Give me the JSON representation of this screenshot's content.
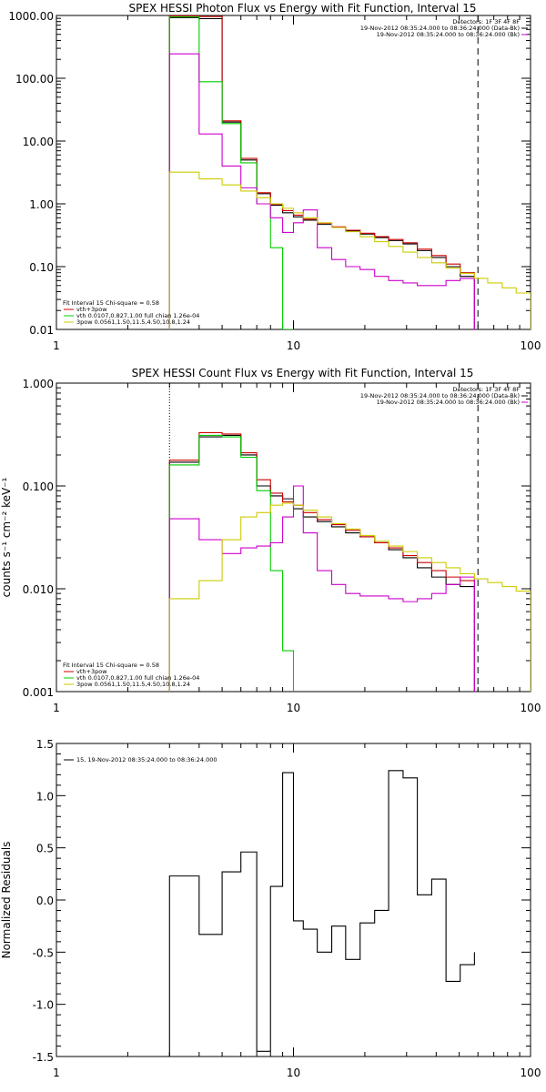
{
  "chart_data": [
    {
      "type": "line",
      "title": "SPEX HESSI Photon Flux vs Energy with Fit Function, Interval 15",
      "ylabel": "",
      "xscale": "log",
      "yscale": "log",
      "xlim": [
        1,
        100
      ],
      "ylim": [
        0.01,
        1000
      ],
      "xticks": [
        "1",
        "10",
        "100"
      ],
      "yticks": [
        "0.01",
        "0.10",
        "1.00",
        "10.00",
        "100.00",
        "1000.00"
      ],
      "ytick_values": [
        0.01,
        0.1,
        1,
        10,
        100,
        1000
      ],
      "header_lines": [
        "Detectors: 1F 3F 4F 8F",
        "19-Nov-2012 08:35:24.000 to 08:36:24.000 (Data-Bk)",
        "19-Nov-2012 08:35:24.000 to 08:36:24.000 (Bk)"
      ],
      "header_colors": [
        "#000000",
        "#000000",
        "#cc00cc"
      ],
      "legend_lines": [
        "Fit Interval 15   Chi-square = 0.58",
        "vth+3pow",
        "vth 0.0107,0.827,1.00  full chian 1.26e-04",
        "3pow 0.0561,1.50,11.5,4.50,10.8,1.24"
      ],
      "legend_colors": [
        "#000000",
        "#cc0000",
        "#00cc00",
        "#cccc00"
      ],
      "vlines": [
        {
          "x": 3,
          "style": "dotted"
        },
        {
          "x": 60,
          "style": "dashed"
        }
      ],
      "series": [
        {
          "color": "#000000",
          "edges": [
            3,
            4,
            5,
            6,
            7,
            8,
            9,
            10,
            11,
            12.6,
            14.5,
            16.6,
            19.1,
            22,
            25.2,
            29,
            33.3,
            38.3,
            44,
            50.5,
            58
          ],
          "values": [
            920,
            890,
            20,
            5,
            1.45,
            0.95,
            0.72,
            0.62,
            0.55,
            0.47,
            0.42,
            0.37,
            0.33,
            0.29,
            0.26,
            0.23,
            0.18,
            0.14,
            0.1,
            0.07
          ]
        },
        {
          "color": "#cc0000",
          "edges": [
            3,
            4,
            5,
            6,
            7,
            8,
            9,
            10,
            11,
            12.6,
            14.5,
            16.6,
            19.1,
            22,
            25.2,
            29,
            33.3,
            38.3,
            44,
            50.5,
            58
          ],
          "values": [
            980,
            960,
            21,
            5.3,
            1.5,
            0.98,
            0.78,
            0.66,
            0.57,
            0.49,
            0.43,
            0.38,
            0.34,
            0.3,
            0.27,
            0.24,
            0.19,
            0.15,
            0.11,
            0.08
          ]
        },
        {
          "color": "#00cc00",
          "edges": [
            3,
            4,
            5,
            6,
            7,
            8,
            9,
            10
          ],
          "values": [
            950,
            88,
            19,
            4.5,
            1.0,
            0.2,
            0.008
          ]
        },
        {
          "color": "#cc00cc",
          "edges": [
            3,
            4,
            5,
            6,
            7,
            8,
            9,
            10,
            11,
            12.6,
            14.5,
            16.6,
            19.1,
            22,
            25.2,
            29,
            33.3,
            38.3,
            44,
            50.5,
            58
          ],
          "values": [
            245,
            13,
            4,
            1.8,
            1.0,
            0.6,
            0.35,
            0.5,
            0.8,
            0.2,
            0.13,
            0.1,
            0.09,
            0.07,
            0.06,
            0.055,
            0.05,
            0.05,
            0.06,
            0.065
          ]
        },
        {
          "color": "#cccc00",
          "edges": [
            3,
            4,
            5,
            6,
            7,
            8,
            9,
            10,
            11,
            12.6,
            14.5,
            16.6,
            19.1,
            22,
            25.2,
            29,
            33.3,
            38.3,
            44,
            50.5,
            58,
            66,
            76,
            87,
            100
          ],
          "values": [
            3.2,
            2.5,
            2.0,
            1.6,
            1.25,
            1.0,
            0.85,
            0.72,
            0.6,
            0.5,
            0.42,
            0.36,
            0.3,
            0.25,
            0.21,
            0.17,
            0.14,
            0.115,
            0.095,
            0.078,
            0.065,
            0.055,
            0.046,
            0.038
          ]
        }
      ]
    },
    {
      "type": "line",
      "title": "SPEX HESSI Count Flux vs Energy with Fit Function, Interval 15",
      "ylabel": "counts s⁻¹ cm⁻² keV⁻¹",
      "xscale": "log",
      "yscale": "log",
      "xlim": [
        1,
        100
      ],
      "ylim": [
        0.001,
        1
      ],
      "xticks": [
        "1",
        "10",
        "100"
      ],
      "yticks": [
        "0.001",
        "0.010",
        "0.100",
        "1.000"
      ],
      "ytick_values": [
        0.001,
        0.01,
        0.1,
        1
      ],
      "header_lines": [
        "Detectors: 1F 3F 4F 8F",
        "19-Nov-2012 08:35:24.000 to 08:36:24.000 (Data-Bk)",
        "19-Nov-2012 08:35:24.000 to 08:36:24.000 (Bk)"
      ],
      "header_colors": [
        "#000000",
        "#000000",
        "#cc00cc"
      ],
      "legend_lines": [
        "Fit Interval 15   Chi-square = 0.58",
        "vth+3pow",
        "vth 0.0107,0.827,1.00  full chian 1.26e-04",
        "3pow 0.0561,1.50,11.5,4.50,10.8,1.24"
      ],
      "legend_colors": [
        "#000000",
        "#cc0000",
        "#00cc00",
        "#cccc00"
      ],
      "vlines": [
        {
          "x": 3,
          "style": "dotted"
        },
        {
          "x": 60,
          "style": "dashed"
        }
      ],
      "series": [
        {
          "color": "#000000",
          "edges": [
            3,
            4,
            5,
            6,
            7,
            8,
            9,
            10,
            11,
            12.6,
            14.5,
            16.6,
            19.1,
            22,
            25.2,
            29,
            33.3,
            38.3,
            44,
            50.5,
            58
          ],
          "values": [
            0.17,
            0.3,
            0.31,
            0.2,
            0.1,
            0.08,
            0.075,
            0.06,
            0.05,
            0.045,
            0.04,
            0.035,
            0.032,
            0.028,
            0.024,
            0.02,
            0.016,
            0.013,
            0.011,
            0.0105
          ]
        },
        {
          "color": "#cc0000",
          "edges": [
            3,
            4,
            5,
            6,
            7,
            8,
            9,
            10,
            11,
            12.6,
            14.5,
            16.6,
            19.1,
            22,
            25.2,
            29,
            33.3,
            38.3,
            44,
            50.5,
            58
          ],
          "values": [
            0.178,
            0.33,
            0.32,
            0.21,
            0.115,
            0.085,
            0.07,
            0.065,
            0.055,
            0.047,
            0.042,
            0.037,
            0.032,
            0.028,
            0.025,
            0.021,
            0.018,
            0.015,
            0.013,
            0.012
          ]
        },
        {
          "color": "#00cc00",
          "edges": [
            3,
            4,
            5,
            6,
            7,
            8,
            9,
            10
          ],
          "values": [
            0.16,
            0.31,
            0.3,
            0.19,
            0.09,
            0.015,
            0.0025
          ]
        },
        {
          "color": "#cc00cc",
          "edges": [
            3,
            4,
            5,
            6,
            7,
            8,
            9,
            10,
            11,
            12.6,
            14.5,
            16.6,
            19.1,
            22,
            25.2,
            29,
            33.3,
            38.3,
            44,
            50.5,
            58
          ],
          "values": [
            0.048,
            0.03,
            0.022,
            0.025,
            0.026,
            0.028,
            0.05,
            0.1,
            0.035,
            0.015,
            0.011,
            0.009,
            0.0085,
            0.0085,
            0.008,
            0.0075,
            0.008,
            0.009,
            0.011,
            0.013
          ]
        },
        {
          "color": "#cccc00",
          "edges": [
            3,
            4,
            5,
            6,
            7,
            8,
            9,
            10,
            11,
            12.6,
            14.5,
            16.6,
            19.1,
            22,
            25.2,
            29,
            33.3,
            38.3,
            44,
            50.5,
            58,
            66,
            76,
            87,
            100
          ],
          "values": [
            0.008,
            0.012,
            0.03,
            0.05,
            0.055,
            0.065,
            0.068,
            0.065,
            0.058,
            0.05,
            0.043,
            0.038,
            0.033,
            0.029,
            0.026,
            0.023,
            0.02,
            0.018,
            0.016,
            0.014,
            0.0125,
            0.0115,
            0.0105,
            0.0095
          ]
        }
      ]
    },
    {
      "type": "line",
      "title": "",
      "ylabel": "Normalized Residuals",
      "xscale": "log",
      "yscale": "linear",
      "xlim": [
        1,
        100
      ],
      "ylim": [
        -1.5,
        1.5
      ],
      "xticks": [
        "1",
        "10",
        "100"
      ],
      "yticks": [
        "-1.5",
        "-1.0",
        "-0.5",
        "0.0",
        "0.5",
        "1.0",
        "1.5"
      ],
      "ytick_values": [
        -1.5,
        -1.0,
        -0.5,
        0.0,
        0.5,
        1.0,
        1.5
      ],
      "header_lines": [],
      "header_colors": [],
      "legend_lines": [
        "15, 19-Nov-2012 08:35:24.000 to 08:36:24.000"
      ],
      "legend_colors": [
        "#000000"
      ],
      "vlines": [],
      "series": [
        {
          "color": "#000000",
          "edges": [
            3,
            4,
            5,
            6,
            7,
            8,
            9,
            10,
            11,
            12.6,
            14.5,
            16.6,
            19.1,
            22,
            25.2,
            29,
            33.3,
            38.3,
            44,
            50.5,
            58
          ],
          "values": [
            0.23,
            -0.33,
            0.27,
            0.46,
            -1.45,
            0.13,
            1.22,
            -0.2,
            -0.28,
            -0.5,
            -0.25,
            -0.57,
            -0.22,
            -0.1,
            1.24,
            1.17,
            0.05,
            0.2,
            -0.78,
            -0.62,
            -0.5
          ],
          "start_baseline": -1.5
        }
      ]
    }
  ]
}
